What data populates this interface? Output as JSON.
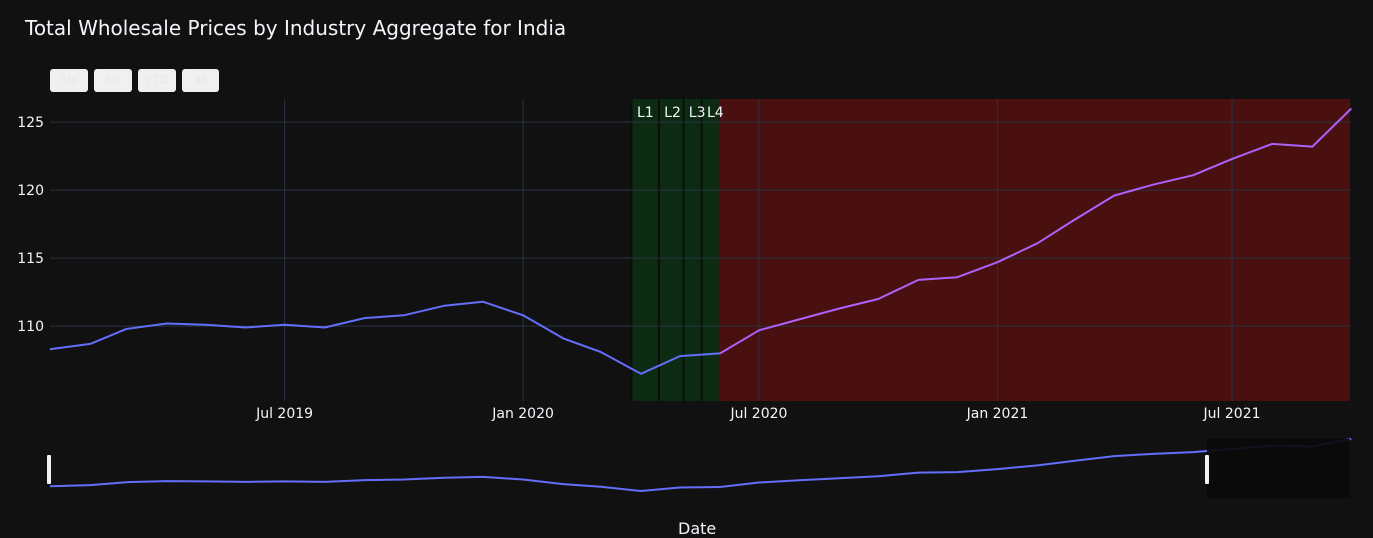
{
  "title": "Total Wholesale Prices by Industry Aggregate for India",
  "range_buttons": [
    "1m",
    "6m",
    "YTD",
    "all"
  ],
  "chart_data": {
    "type": "line",
    "title": "Total Wholesale Prices by Industry Aggregate for India",
    "xlabel": "Date",
    "ylabel": "",
    "x_ticks": [
      "Jul 2019",
      "Jan 2020",
      "Jul 2020",
      "Jan 2021",
      "Jul 2021"
    ],
    "y_ticks": [
      110,
      115,
      120,
      125
    ],
    "xlim": [
      "2019-01-01",
      "2021-09-30"
    ],
    "ylim": [
      104.5,
      126.7
    ],
    "grid": true,
    "series": [
      {
        "color": "#636efa",
        "x": [
          "2019-01-01",
          "2019-02-01",
          "2019-03-01",
          "2019-04-01",
          "2019-05-01",
          "2019-06-01",
          "2019-07-01",
          "2019-08-01",
          "2019-09-01",
          "2019-10-01",
          "2019-11-01",
          "2019-12-01",
          "2020-01-01",
          "2020-02-01",
          "2020-03-01",
          "2020-04-01",
          "2020-05-01",
          "2020-06-01"
        ],
        "y": [
          108.3,
          108.7,
          109.8,
          110.2,
          110.1,
          109.9,
          110.1,
          109.9,
          110.6,
          110.8,
          111.5,
          111.8,
          110.8,
          109.1,
          108.1,
          106.5,
          107.8,
          108.0
        ]
      },
      {
        "color": "#ab63fa",
        "x": [
          "2020-06-01",
          "2020-07-01",
          "2020-08-01",
          "2020-09-01",
          "2020-10-01",
          "2020-11-01",
          "2020-12-01",
          "2021-01-01",
          "2021-02-01",
          "2021-03-01",
          "2021-04-01",
          "2021-05-01",
          "2021-06-01",
          "2021-07-01",
          "2021-08-01",
          "2021-09-01",
          "2021-10-01"
        ],
        "y": [
          108.0,
          109.7,
          110.5,
          111.3,
          112.0,
          113.4,
          113.6,
          114.7,
          116.1,
          117.8,
          119.6,
          120.4,
          121.1,
          122.3,
          123.4,
          123.2,
          126.0
        ]
      }
    ],
    "shaded_regions": [
      {
        "label": "L1",
        "start": "2020-03-25",
        "end": "2020-04-14",
        "color": "#0d2b12"
      },
      {
        "label": "L2",
        "start": "2020-04-15",
        "end": "2020-05-03",
        "color": "#0d2b12"
      },
      {
        "label": "L3",
        "start": "2020-05-04",
        "end": "2020-05-17",
        "color": "#0d2b12"
      },
      {
        "label": "L4",
        "start": "2020-05-18",
        "end": "2020-05-31",
        "color": "#0d2b12"
      },
      {
        "label": "",
        "start": "2020-05-31",
        "end": "2021-09-30",
        "color": "#4a0f0f"
      }
    ]
  }
}
